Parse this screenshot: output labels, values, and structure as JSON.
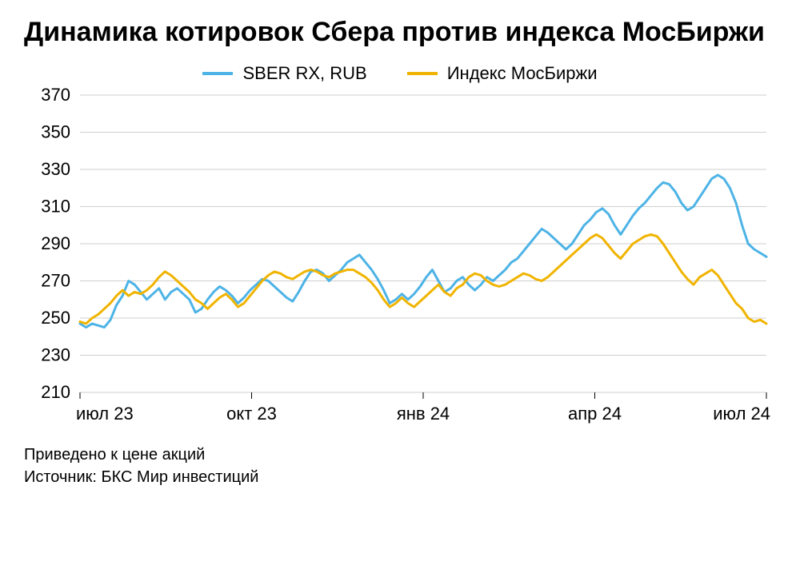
{
  "title": "Динамика котировок Сбера против индекса МосБиржи",
  "footnote_line1": "Приведено к цене акций",
  "footnote_line2": "Источник: БКС Мир инвестиций",
  "chart": {
    "type": "line",
    "background_color": "#ffffff",
    "grid_color": "#cfcfcf",
    "axis_color": "#000000",
    "ylim": [
      210,
      370
    ],
    "ytick_step": 20,
    "yticks": [
      210,
      230,
      250,
      270,
      290,
      310,
      330,
      350,
      370
    ],
    "x_domain_steps": 12,
    "xticks": [
      {
        "pos": 0,
        "label": "июл 23"
      },
      {
        "pos": 3,
        "label": "окт 23"
      },
      {
        "pos": 6,
        "label": "янв 24"
      },
      {
        "pos": 9,
        "label": "апр 24"
      },
      {
        "pos": 12,
        "label": "июл 24"
      }
    ],
    "axis_label_fontsize": 22,
    "line_width": 3,
    "series": [
      {
        "name": "SBER RX, RUB",
        "color": "#4db3e6",
        "data": [
          247,
          245,
          247,
          246,
          245,
          249,
          257,
          262,
          270,
          268,
          264,
          260,
          263,
          266,
          260,
          264,
          266,
          263,
          260,
          253,
          255,
          260,
          264,
          267,
          265,
          262,
          258,
          261,
          265,
          268,
          271,
          270,
          267,
          264,
          261,
          259,
          264,
          270,
          275,
          276,
          274,
          270,
          273,
          276,
          280,
          282,
          284,
          280,
          276,
          271,
          265,
          258,
          260,
          263,
          260,
          263,
          267,
          272,
          276,
          270,
          264,
          266,
          270,
          272,
          268,
          265,
          268,
          272,
          270,
          273,
          276,
          280,
          282,
          286,
          290,
          294,
          298,
          296,
          293,
          290,
          287,
          290,
          295,
          300,
          303,
          307,
          309,
          306,
          300,
          295,
          300,
          305,
          309,
          312,
          316,
          320,
          323,
          322,
          318,
          312,
          308,
          310,
          315,
          320,
          325,
          327,
          325,
          320,
          312,
          300,
          290,
          287,
          285,
          283
        ]
      },
      {
        "name": "Индекс МосБиржи",
        "color": "#f0b400",
        "data": [
          248,
          247,
          250,
          252,
          255,
          258,
          262,
          265,
          262,
          264,
          263,
          265,
          268,
          272,
          275,
          273,
          270,
          267,
          264,
          260,
          258,
          255,
          258,
          261,
          263,
          260,
          256,
          258,
          262,
          266,
          270,
          273,
          275,
          274,
          272,
          271,
          273,
          275,
          276,
          275,
          273,
          272,
          274,
          275,
          276,
          276,
          274,
          272,
          269,
          265,
          260,
          256,
          258,
          261,
          258,
          256,
          259,
          262,
          265,
          268,
          264,
          262,
          266,
          268,
          272,
          274,
          273,
          270,
          268,
          267,
          268,
          270,
          272,
          274,
          273,
          271,
          270,
          272,
          275,
          278,
          281,
          284,
          287,
          290,
          293,
          295,
          293,
          289,
          285,
          282,
          286,
          290,
          292,
          294,
          295,
          294,
          290,
          285,
          280,
          275,
          271,
          268,
          272,
          274,
          276,
          273,
          268,
          263,
          258,
          255,
          250,
          248,
          249,
          247
        ]
      }
    ]
  }
}
